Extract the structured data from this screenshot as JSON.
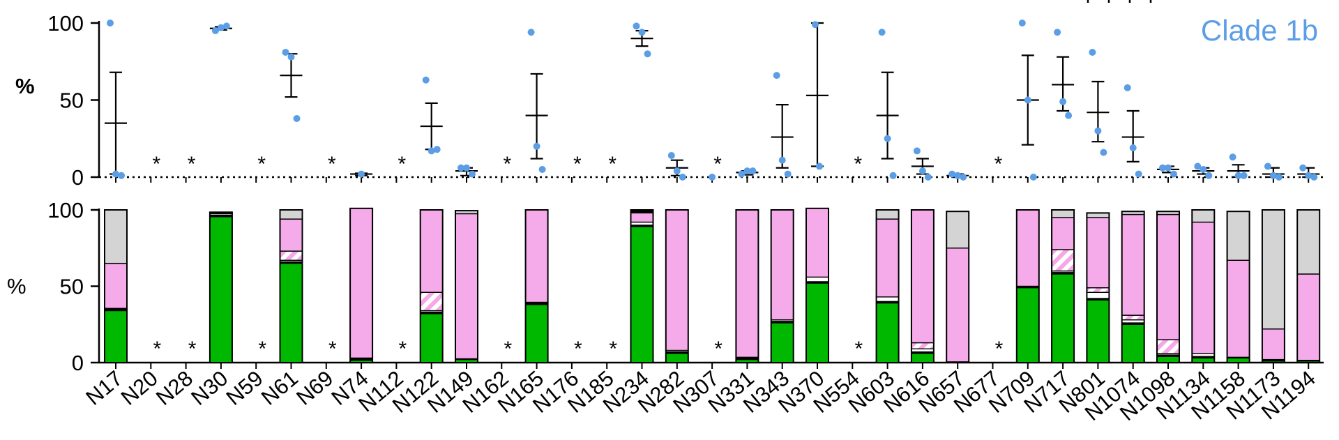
{
  "chart_data": [
    {
      "type": "scatter",
      "panel": "top",
      "title": "",
      "annotation": "Clade 1b",
      "ylabel": "%",
      "ylim": [
        0,
        100
      ],
      "yticks": [
        0,
        50,
        100
      ],
      "colors": {
        "points": "#5b9ee6",
        "annotation": "#5b9ee6",
        "bars": "#000000"
      },
      "categories": [
        "N17",
        "N20",
        "N28",
        "N30",
        "N59",
        "N61",
        "N69",
        "N74",
        "N112",
        "N122",
        "N149",
        "N162",
        "N165",
        "N176",
        "N185",
        "N234",
        "N282",
        "N307",
        "N331",
        "N343",
        "N370",
        "N554",
        "N603",
        "N616",
        "N657",
        "N677",
        "N709",
        "N717",
        "N801",
        "N1074",
        "N1098",
        "N1134",
        "N1158",
        "N1173",
        "N1194"
      ],
      "not_detected_marker": "*",
      "series": [
        {
          "site": "N17",
          "points": [
            100,
            2,
            1
          ],
          "mean": 35,
          "sem": [
            2,
            68
          ]
        },
        {
          "site": "N20",
          "na": true
        },
        {
          "site": "N28",
          "na": true
        },
        {
          "site": "N30",
          "points": [
            95,
            97,
            98
          ],
          "mean": 96.5,
          "sem": [
            95.5,
            97.5
          ]
        },
        {
          "site": "N59",
          "na": true
        },
        {
          "site": "N61",
          "points": [
            81,
            78,
            38
          ],
          "mean": 66,
          "sem": [
            52,
            80
          ]
        },
        {
          "site": "N69",
          "na": true
        },
        {
          "site": "N74",
          "points": [
            2
          ],
          "mean": 2,
          "sem": [
            1,
            2.5
          ]
        },
        {
          "site": "N112",
          "na": true
        },
        {
          "site": "N122",
          "points": [
            63,
            17,
            18
          ],
          "mean": 33,
          "sem": [
            18,
            48
          ]
        },
        {
          "site": "N149",
          "points": [
            6,
            6,
            2
          ],
          "mean": 4,
          "sem": [
            1,
            6
          ]
        },
        {
          "site": "N162",
          "na": true
        },
        {
          "site": "N165",
          "points": [
            94,
            20,
            5
          ],
          "mean": 40,
          "sem": [
            12,
            67
          ]
        },
        {
          "site": "N176",
          "na": true
        },
        {
          "site": "N185",
          "na": true
        },
        {
          "site": "N234",
          "points": [
            98,
            94,
            80
          ],
          "mean": 90,
          "sem": [
            85,
            95
          ]
        },
        {
          "site": "N282",
          "points": [
            14,
            4,
            0
          ],
          "mean": 6,
          "sem": [
            1,
            11
          ]
        },
        {
          "site": "N307",
          "points": [
            0
          ],
          "na": true
        },
        {
          "site": "N331",
          "points": [
            2,
            4,
            4
          ],
          "mean": 3,
          "sem": [
            1.5,
            4
          ]
        },
        {
          "site": "N343",
          "points": [
            66,
            11,
            2
          ],
          "mean": 26,
          "sem": [
            6,
            47
          ]
        },
        {
          "site": "N370",
          "points": [
            99,
            7
          ],
          "mean": 53,
          "sem": [
            7,
            100
          ]
        },
        {
          "site": "N554",
          "na": true
        },
        {
          "site": "N603",
          "points": [
            94,
            25,
            1
          ],
          "mean": 40,
          "sem": [
            12,
            68
          ]
        },
        {
          "site": "N616",
          "points": [
            17,
            4,
            0
          ],
          "mean": 7,
          "sem": [
            2,
            12
          ]
        },
        {
          "site": "N657",
          "points": [
            2,
            1,
            0
          ],
          "mean": 1,
          "sem": [
            0,
            2
          ]
        },
        {
          "site": "N677",
          "na": true
        },
        {
          "site": "N709",
          "points": [
            100,
            50,
            0
          ],
          "mean": 50,
          "sem": [
            21,
            79
          ]
        },
        {
          "site": "N717",
          "points": [
            94,
            49,
            40
          ],
          "mean": 60,
          "sem": [
            43,
            78
          ]
        },
        {
          "site": "N801",
          "points": [
            81,
            30,
            16
          ],
          "mean": 42,
          "sem": [
            23,
            62
          ]
        },
        {
          "site": "N1074",
          "points": [
            58,
            19,
            2
          ],
          "mean": 26,
          "sem": [
            10,
            43
          ]
        },
        {
          "site": "N1098",
          "points": [
            6,
            6,
            2
          ],
          "mean": 5,
          "sem": [
            3,
            7
          ]
        },
        {
          "site": "N1134",
          "points": [
            7,
            5,
            1
          ],
          "mean": 4,
          "sem": [
            2,
            6
          ]
        },
        {
          "site": "N1158",
          "points": [
            13,
            1,
            1
          ],
          "mean": 4,
          "sem": [
            0,
            8
          ]
        },
        {
          "site": "N1173",
          "points": [
            7,
            1,
            0
          ],
          "mean": 2,
          "sem": [
            0,
            6
          ]
        },
        {
          "site": "N1194",
          "points": [
            6,
            1,
            0
          ],
          "mean": 2,
          "sem": [
            0,
            6
          ]
        }
      ]
    },
    {
      "type": "bar",
      "stacked": true,
      "panel": "bottom",
      "ylabel": "%",
      "ylim": [
        0,
        100
      ],
      "yticks": [
        0,
        50,
        100
      ],
      "categories": [
        "N17",
        "N20",
        "N28",
        "N30",
        "N59",
        "N61",
        "N69",
        "N74",
        "N112",
        "N122",
        "N149",
        "N162",
        "N165",
        "N176",
        "N185",
        "N234",
        "N282",
        "N307",
        "N331",
        "N343",
        "N370",
        "N554",
        "N603",
        "N616",
        "N657",
        "N677",
        "N709",
        "N717",
        "N801",
        "N1074",
        "N1098",
        "N1134",
        "N1158",
        "N1173",
        "N1194"
      ],
      "not_detected_marker": "*",
      "segment_colors": {
        "green": "#00b800",
        "black": "#000000",
        "white": "#ffffff",
        "hatched": "#f5a8e8",
        "pink": "#f5aaea",
        "grey": "#d4d4d4"
      },
      "segment_order": [
        "green",
        "black",
        "white",
        "hatched",
        "pink",
        "grey"
      ],
      "bars": [
        {
          "site": "N17",
          "green": 34,
          "black": 1.5,
          "white": 0,
          "hatched": 0,
          "pink": 29.5,
          "grey": 35
        },
        {
          "site": "N20",
          "na": true
        },
        {
          "site": "N28",
          "na": true
        },
        {
          "site": "N30",
          "green": 95.5,
          "black": 1,
          "white": 1,
          "hatched": 0,
          "pink": 0.5,
          "grey": 0.5
        },
        {
          "site": "N59",
          "na": true
        },
        {
          "site": "N61",
          "green": 65,
          "black": 1,
          "white": 1,
          "hatched": 6,
          "pink": 21,
          "grey": 6
        },
        {
          "site": "N69",
          "na": true
        },
        {
          "site": "N74",
          "green": 1.5,
          "black": 1.5,
          "white": 0,
          "hatched": 0,
          "pink": 98,
          "grey": 0
        },
        {
          "site": "N112",
          "na": true
        },
        {
          "site": "N122",
          "green": 32,
          "black": 1,
          "white": 1,
          "hatched": 12,
          "pink": 54,
          "grey": 0
        },
        {
          "site": "N149",
          "green": 2,
          "black": 0.5,
          "white": 0,
          "hatched": 0,
          "pink": 95,
          "grey": 2
        },
        {
          "site": "N162",
          "na": true
        },
        {
          "site": "N165",
          "green": 38,
          "black": 1.5,
          "white": 0,
          "hatched": 0,
          "pink": 60.5,
          "grey": 0
        },
        {
          "site": "N176",
          "na": true
        },
        {
          "site": "N185",
          "na": true
        },
        {
          "site": "N234",
          "green": 89,
          "black": 1,
          "white": 2,
          "hatched": 0,
          "pink": 6,
          "grey": 0,
          "black_top": 2
        },
        {
          "site": "N282",
          "green": 6,
          "black": 1,
          "white": 1,
          "hatched": 0,
          "pink": 92,
          "grey": 0
        },
        {
          "site": "N307",
          "na": true
        },
        {
          "site": "N331",
          "green": 2,
          "black": 1.5,
          "white": 0,
          "hatched": 0,
          "pink": 96.5,
          "grey": 0
        },
        {
          "site": "N343",
          "green": 26,
          "black": 1,
          "white": 1,
          "hatched": 0,
          "pink": 72,
          "grey": 0
        },
        {
          "site": "N370",
          "green": 52,
          "black": 1,
          "white": 3,
          "hatched": 0,
          "pink": 45,
          "grey": 0
        },
        {
          "site": "N554",
          "na": true
        },
        {
          "site": "N603",
          "green": 39,
          "black": 1,
          "white": 3,
          "hatched": 0,
          "pink": 51,
          "grey": 6
        },
        {
          "site": "N616",
          "green": 6,
          "black": 1,
          "white": 2,
          "hatched": 4,
          "pink": 87,
          "grey": 0
        },
        {
          "site": "N657",
          "green": 0,
          "black": 0.5,
          "white": 0,
          "hatched": 0,
          "pink": 74.5,
          "grey": 24
        },
        {
          "site": "N677",
          "na": true
        },
        {
          "site": "N709",
          "green": 49,
          "black": 1,
          "white": 0,
          "hatched": 0,
          "pink": 50,
          "grey": 0
        },
        {
          "site": "N717",
          "green": 58,
          "black": 1,
          "white": 1,
          "hatched": 14,
          "pink": 21,
          "grey": 5
        },
        {
          "site": "N801",
          "green": 41,
          "black": 1,
          "white": 4,
          "hatched": 3,
          "pink": 46,
          "grey": 3
        },
        {
          "site": "N1074",
          "green": 25,
          "black": 1,
          "white": 2,
          "hatched": 3,
          "pink": 66,
          "grey": 2
        },
        {
          "site": "N1098",
          "green": 4,
          "black": 1,
          "white": 1,
          "hatched": 9,
          "pink": 82,
          "grey": 2
        },
        {
          "site": "N1134",
          "green": 3,
          "black": 1,
          "white": 2,
          "hatched": 0,
          "pink": 86,
          "grey": 8
        },
        {
          "site": "N1158",
          "green": 3,
          "black": 0.5,
          "white": 0,
          "hatched": 0,
          "pink": 63.5,
          "grey": 32
        },
        {
          "site": "N1173",
          "green": 1,
          "black": 1,
          "white": 0,
          "hatched": 0,
          "pink": 20,
          "grey": 78
        },
        {
          "site": "N1194",
          "green": 1,
          "black": 0.5,
          "white": 0,
          "hatched": 0,
          "pink": 56.5,
          "grey": 42
        }
      ]
    }
  ]
}
